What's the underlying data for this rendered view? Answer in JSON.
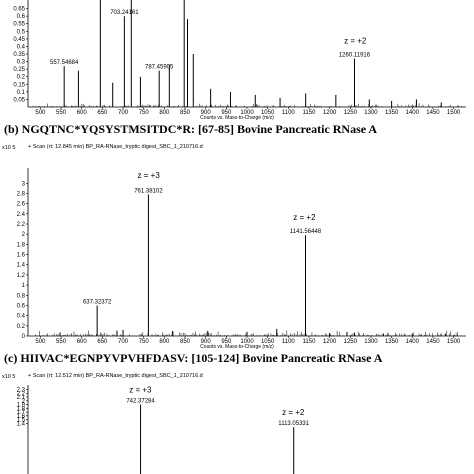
{
  "captions": {
    "b": "(b) NGQTNC*YQSYSTMSITDC*R: [67-85] Bovine Pancreatic RNase A",
    "c": "(c) HIIVAC*EGNPYVPVHFDASV: [105-124] Bovine Pancreatic RNase A"
  },
  "chart_data": [
    {
      "type": "bar",
      "panel": "a",
      "unit_label": "",
      "scan_header": "",
      "x_range": [
        470,
        1530
      ],
      "y_range": [
        0,
        0.72
      ],
      "x_ticks": [
        500,
        550,
        600,
        650,
        700,
        750,
        800,
        850,
        900,
        950,
        1000,
        1050,
        1100,
        1150,
        1200,
        1250,
        1300,
        1350,
        1400,
        1450,
        1500
      ],
      "y_ticks": [
        "0.05",
        "0.1",
        "0.15",
        "0.2",
        "0.25",
        "0.3",
        "0.35",
        "0.4",
        "0.45",
        "0.5",
        "0.55",
        "0.6",
        "0.65"
      ],
      "x_axis_label": "Counts vs. Mass-to-Charge (m/z)",
      "peaks": [
        {
          "mz": 557.55,
          "y": 0.27,
          "label": "557.54684"
        },
        {
          "mz": 592,
          "y": 0.24
        },
        {
          "mz": 645,
          "y": 0.72
        },
        {
          "mz": 675,
          "y": 0.16
        },
        {
          "mz": 703.24,
          "y": 0.6,
          "label": "703.24161"
        },
        {
          "mz": 720,
          "y": 0.72
        },
        {
          "mz": 742,
          "y": 0.2
        },
        {
          "mz": 787.46,
          "y": 0.24,
          "label": "787.45905"
        },
        {
          "mz": 812,
          "y": 0.28
        },
        {
          "mz": 848,
          "y": 0.72
        },
        {
          "mz": 856,
          "y": 0.58
        },
        {
          "mz": 870,
          "y": 0.35
        },
        {
          "mz": 912,
          "y": 0.12
        },
        {
          "mz": 960,
          "y": 0.1
        },
        {
          "mz": 1020,
          "y": 0.08
        },
        {
          "mz": 1080,
          "y": 0.06
        },
        {
          "mz": 1142,
          "y": 0.09
        },
        {
          "mz": 1215,
          "y": 0.08
        },
        {
          "mz": 1260.12,
          "y": 0.32,
          "label": "1260.11916"
        },
        {
          "mz": 1296,
          "y": 0.05
        },
        {
          "mz": 1350,
          "y": 0.04
        },
        {
          "mz": 1410,
          "y": 0.05
        },
        {
          "mz": 1470,
          "y": 0.03
        }
      ],
      "annotations": [
        {
          "text": "z = +2",
          "mz": 1262,
          "y": 0.42
        }
      ]
    },
    {
      "type": "bar",
      "panel": "b",
      "unit_label": "x10 5",
      "scan_header": "+ Scan (rt: 12.845 min) BP_RA-RNase_tryptic digest_SBC_1_210716.d",
      "x_range": [
        470,
        1530
      ],
      "y_range": [
        0,
        3.3
      ],
      "x_ticks": [
        500,
        550,
        600,
        650,
        700,
        750,
        800,
        850,
        900,
        950,
        1000,
        1050,
        1100,
        1150,
        1200,
        1250,
        1300,
        1350,
        1400,
        1450,
        1500
      ],
      "y_ticks": [
        "0",
        "0.2",
        "0.4",
        "0.6",
        "0.8",
        "1",
        "1.2",
        "1.4",
        "1.6",
        "1.8",
        "2",
        "2.2",
        "2.4",
        "2.6",
        "2.8",
        "3"
      ],
      "x_axis_label": "Counts vs. Mass-to-Charge (m/z)",
      "peaks": [
        {
          "mz": 637.32,
          "y": 0.6,
          "label": "637.32372"
        },
        {
          "mz": 700,
          "y": 0.12
        },
        {
          "mz": 761.38,
          "y": 2.78,
          "label": "761.38102"
        },
        {
          "mz": 820,
          "y": 0.1
        },
        {
          "mz": 905,
          "y": 0.1
        },
        {
          "mz": 1000,
          "y": 0.08
        },
        {
          "mz": 1072,
          "y": 0.14
        },
        {
          "mz": 1141.56,
          "y": 1.98,
          "label": "1141.56448"
        },
        {
          "mz": 1200,
          "y": 0.06
        },
        {
          "mz": 1260,
          "y": 0.06
        },
        {
          "mz": 1330,
          "y": 0.05
        },
        {
          "mz": 1400,
          "y": 0.05
        },
        {
          "mz": 1480,
          "y": 0.05
        }
      ],
      "annotations": [
        {
          "text": "z = +3",
          "mz": 762,
          "y": 3.1
        },
        {
          "text": "z = +2",
          "mz": 1139,
          "y": 2.28
        }
      ]
    },
    {
      "type": "bar",
      "panel": "c",
      "unit_label": "x10 5",
      "scan_header": "+ Scan (rt: 12.512 min) BP_RA-RNase_tryptic digest_SBC_1_210716.d",
      "x_range": [
        470,
        1530
      ],
      "y_range": [
        0,
        2.42
      ],
      "x_ticks": [],
      "y_ticks": [
        "1.4",
        "1.5",
        "1.6",
        "1.7",
        "1.8",
        "1.9",
        "2",
        "2.1",
        "2.2",
        "2.3"
      ],
      "x_axis_label": "",
      "peaks": [
        {
          "mz": 742.37,
          "y": 1.9,
          "label": "742.37284"
        },
        {
          "mz": 1113.05,
          "y": 1.3,
          "label": "1113.05331"
        }
      ],
      "annotations": [
        {
          "text": "z = +3",
          "mz": 742,
          "y": 2.22
        },
        {
          "text": "z = +2",
          "mz": 1112,
          "y": 1.62
        }
      ]
    }
  ]
}
